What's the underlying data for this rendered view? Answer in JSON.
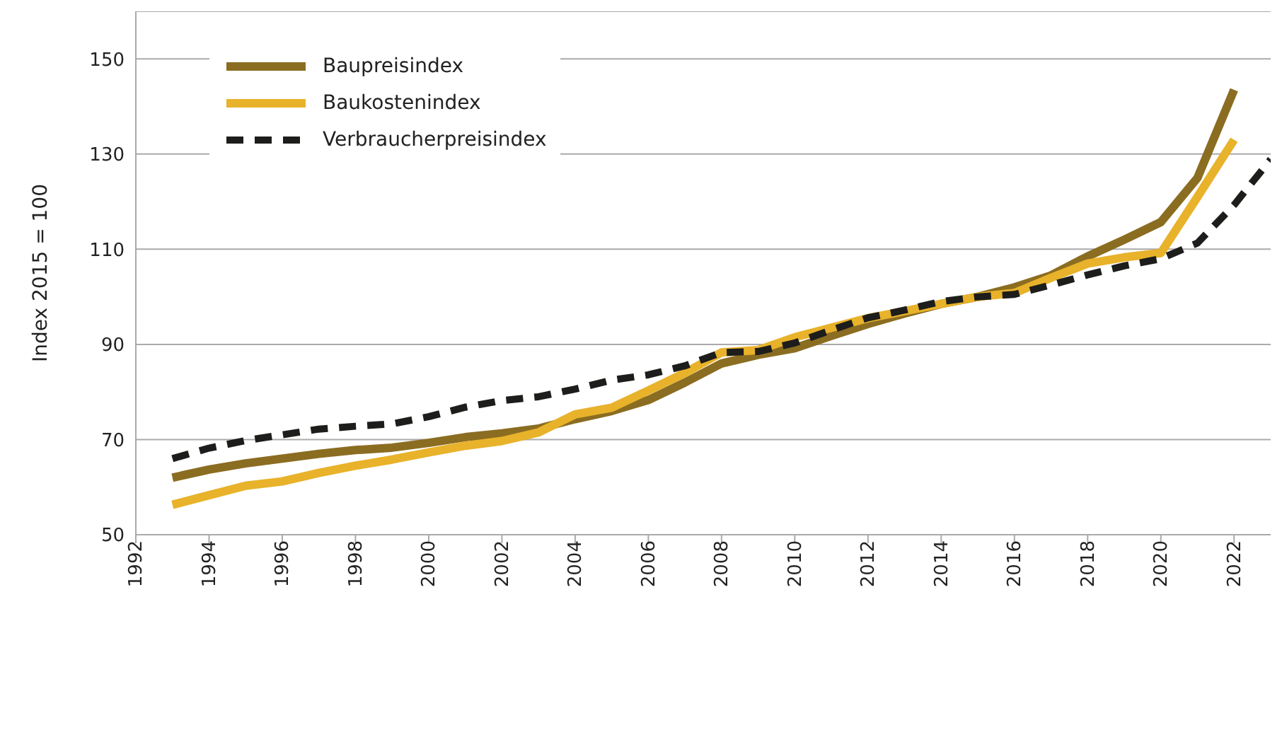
{
  "chart_data": {
    "type": "line",
    "ylabel": "Index 2015 = 100",
    "x": [
      1993,
      1994,
      1995,
      1996,
      1997,
      1998,
      1999,
      2000,
      2001,
      2002,
      2003,
      2004,
      2005,
      2006,
      2007,
      2008,
      2009,
      2010,
      2011,
      2012,
      2013,
      2014,
      2015,
      2016,
      2017,
      2018,
      2019,
      2020,
      2021,
      2022,
      2023
    ],
    "series": [
      {
        "name": "Baupreisindex",
        "color": "#8b6d21",
        "line_style": "solid",
        "values": [
          62,
          63.7,
          65,
          66,
          67,
          67.8,
          68.3,
          69.3,
          70.5,
          71.3,
          72.3,
          74.3,
          76,
          78.3,
          82,
          86,
          87.8,
          89.2,
          91.8,
          94.3,
          96.5,
          98.5,
          100,
          102,
          104.5,
          108.5,
          112,
          115.7,
          125,
          143.5,
          null
        ]
      },
      {
        "name": "Baukostenindex",
        "color": "#e8b22a",
        "line_style": "solid",
        "values": [
          56.3,
          58.3,
          60.3,
          61.2,
          63,
          64.5,
          65.8,
          67.3,
          68.7,
          69.7,
          71.5,
          75.3,
          76.7,
          80.3,
          84,
          88.3,
          88.8,
          91.5,
          93.5,
          95.5,
          97,
          98.5,
          100,
          100.8,
          104,
          107,
          108.3,
          109.2,
          121,
          133,
          null
        ]
      },
      {
        "name": "Verbraucherpreisindex",
        "color": "#1d1d1b",
        "line_style": "dashed",
        "values": [
          66,
          68.2,
          69.8,
          71,
          72.2,
          72.8,
          73.3,
          74.8,
          76.8,
          78.2,
          79,
          80.6,
          82.5,
          83.6,
          85.5,
          88.3,
          88.5,
          90.3,
          93,
          95.6,
          97.2,
          99,
          100,
          100.5,
          102.5,
          104.6,
          106.5,
          108,
          111.3,
          119.3,
          128.9
        ]
      }
    ],
    "xlim": [
      1992,
      2023
    ],
    "xticks": [
      1992,
      1994,
      1996,
      1998,
      2000,
      2002,
      2004,
      2006,
      2008,
      2010,
      2012,
      2014,
      2016,
      2018,
      2020,
      2022
    ],
    "ylim": [
      50,
      160
    ],
    "yticks": [
      50,
      70,
      90,
      110,
      130,
      150
    ],
    "grid": "y",
    "legend": "top left",
    "marker": "none"
  }
}
